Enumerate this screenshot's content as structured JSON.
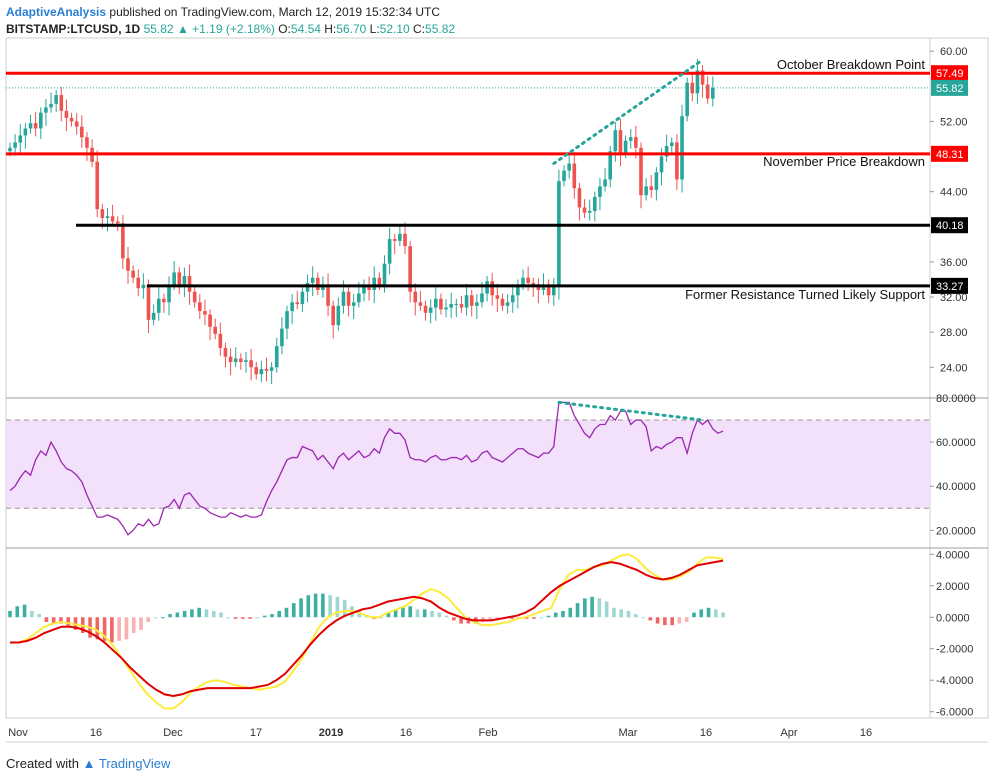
{
  "header": {
    "author": "AdaptiveAnalysis",
    "published": "published on TradingView.com, March 12, 2019 15:32:34 UTC",
    "symbol": "BITSTAMP:LTCUSD, 1D",
    "last": "55.82",
    "change": "▲ +1.19 (+2.18%)",
    "o_label": "O:",
    "o": "54.54",
    "h_label": "H:",
    "h": "56.70",
    "l_label": "L:",
    "l": "52.10",
    "c_label": "C:",
    "c": "55.82"
  },
  "footer": {
    "prefix": "Created with",
    "brand": "TradingView"
  },
  "colors": {
    "up": "#26a69a",
    "down": "#ef5350",
    "level_red": "#ff0000",
    "level_black": "#000000",
    "rsi": "#9c27b0",
    "rsi_band": "#f3e0fb",
    "macd": "#ffeb3b",
    "signal": "#e00000",
    "hist_up": "#26a69a",
    "hist_down": "#ef5350",
    "dotted": "#26a69a",
    "last_price": "#26a69a"
  },
  "chart_data": [
    {
      "type": "candlestick",
      "title": "BITSTAMP:LTCUSD, 1D",
      "x_ticks": [
        "Nov",
        "16",
        "Dec",
        "17",
        "2019",
        "16",
        "Feb",
        "Mar",
        "16",
        "Apr",
        "16"
      ],
      "y_ticks": [
        "60.00",
        "52.00",
        "44.00",
        "36.00",
        "32.00",
        "28.00",
        "24.00"
      ],
      "ylim": [
        20.5,
        61.5
      ],
      "x_range_days": [
        0,
        170
      ],
      "closes": [
        49.0,
        49.6,
        50.4,
        51.2,
        51.8,
        51.2,
        53.0,
        53.6,
        54.0,
        55.0,
        53.2,
        52.4,
        52.0,
        51.4,
        50.2,
        49.0,
        47.4,
        42.0,
        41.0,
        41.2,
        40.6,
        40.4,
        36.4,
        35.0,
        34.2,
        33.0,
        33.4,
        29.4,
        30.2,
        31.8,
        31.4,
        33.4,
        34.8,
        33.2,
        34.4,
        32.6,
        31.4,
        30.4,
        30.0,
        28.6,
        27.8,
        26.2,
        25.2,
        24.6,
        25.0,
        24.6,
        24.8,
        24.0,
        23.2,
        23.8,
        23.6,
        24.0,
        26.4,
        28.4,
        30.4,
        31.4,
        31.2,
        32.6,
        33.6,
        34.2,
        32.8,
        33.4,
        31.0,
        28.8,
        31.0,
        32.6,
        31.0,
        31.4,
        32.4,
        33.4,
        32.8,
        34.2,
        33.4,
        35.8,
        38.6,
        38.4,
        39.2,
        37.8,
        32.6,
        31.4,
        31.0,
        30.2,
        30.8,
        31.8,
        30.6,
        30.8,
        31.2,
        31.2,
        30.8,
        32.2,
        31.0,
        31.4,
        32.4,
        33.8,
        32.2,
        31.8,
        31.0,
        31.4,
        32.2,
        33.4,
        34.2,
        33.6,
        33.2,
        32.8,
        33.4,
        32.2,
        33.2,
        45.2,
        46.4,
        47.2,
        44.4,
        42.2,
        41.6,
        41.8,
        43.4,
        44.6,
        45.4,
        48.6,
        51.0,
        48.4,
        49.8,
        50.2,
        49.0,
        43.6,
        44.6,
        44.2,
        46.2,
        48.0,
        49.2,
        49.6,
        45.4,
        52.6,
        56.4,
        55.2,
        57.8,
        56.2,
        54.6,
        55.82
      ],
      "volatility_note": "",
      "levels": [
        {
          "value": 57.49,
          "label": "October Breakdown Point",
          "price_label": "57.49",
          "color": "red"
        },
        {
          "value": 48.31,
          "label": "November Price Breakdown",
          "price_label": "48.31",
          "color": "red"
        },
        {
          "value": 40.18,
          "label": "",
          "price_label": "40.18",
          "color": "black"
        },
        {
          "value": 33.27,
          "label": "Former Resistance Turned Likely Support",
          "price_label": "33.27",
          "color": "black"
        }
      ],
      "last_price": {
        "value": 55.82,
        "label": "55.82"
      },
      "trendline": {
        "from": [
          106,
          47.2
        ],
        "to": [
          135,
          59.0
        ],
        "style": "dotted"
      }
    },
    {
      "type": "line",
      "name": "RSI",
      "y_ticks": [
        "80.0000",
        "60.0000",
        "40.0000",
        "20.0000"
      ],
      "ylim": [
        12,
        80
      ],
      "band": [
        30,
        70
      ],
      "values": [
        38,
        40,
        44,
        47,
        45,
        52,
        56,
        54,
        60,
        56,
        51,
        48,
        47,
        45,
        42,
        36,
        31,
        26,
        26,
        27,
        26,
        25,
        22,
        18,
        20,
        23,
        22,
        25,
        22,
        23,
        30,
        31,
        34,
        30,
        36,
        37,
        34,
        31,
        30,
        28,
        27,
        26,
        26,
        28,
        27,
        26,
        27,
        26,
        26,
        27,
        33,
        38,
        42,
        47,
        52,
        53,
        53,
        58,
        57,
        56,
        52,
        54,
        51,
        48,
        53,
        55,
        52,
        54,
        56,
        53,
        54,
        57,
        55,
        62,
        66,
        64,
        64,
        61,
        53,
        52,
        52,
        51,
        53,
        54,
        52,
        52,
        53,
        53,
        52,
        54,
        51,
        52,
        55,
        56,
        53,
        52,
        51,
        53,
        55,
        57,
        57,
        55,
        54,
        53,
        55,
        55,
        58,
        78,
        78,
        78,
        72,
        68,
        64,
        62,
        66,
        68,
        68,
        72,
        70,
        74,
        74,
        68,
        70,
        70,
        67,
        56,
        58,
        57,
        59,
        60,
        62,
        62,
        55,
        64,
        70,
        68,
        70,
        66,
        64,
        65
      ],
      "trendline": {
        "from": [
          107,
          78
        ],
        "to": [
          135,
          70
        ],
        "style": "dotted"
      }
    },
    {
      "type": "line",
      "name": "MACD",
      "y_ticks": [
        "4.0000",
        "2.0000",
        "0.0000",
        "-2.0000",
        "-4.0000",
        "-6.0000"
      ],
      "ylim": [
        -6.4,
        4.4
      ],
      "macd": [
        -1.6,
        -1.6,
        -1.4,
        -1.0,
        -0.6,
        -0.4,
        -0.3,
        -0.4,
        -0.5,
        -0.6,
        -0.8,
        -1.2,
        -1.8,
        -2.6,
        -3.4,
        -4.2,
        -4.9,
        -5.4,
        -5.8,
        -5.8,
        -5.4,
        -4.8,
        -4.4,
        -4.1,
        -4.0,
        -4.1,
        -4.3,
        -4.4,
        -4.5,
        -4.6,
        -4.5,
        -4.4,
        -4.1,
        -3.4,
        -2.6,
        -1.6,
        -0.6,
        0.0,
        0.3,
        0.4,
        0.4,
        0.2,
        0.0,
        0.0,
        0.3,
        0.5,
        0.7,
        1.1,
        1.5,
        1.8,
        1.6,
        1.2,
        0.6,
        0.0,
        -0.3,
        -0.5,
        -0.5,
        -0.4,
        -0.3,
        -0.1,
        0.0,
        0.2,
        0.4,
        0.6,
        1.8,
        2.7,
        3.0,
        3.0,
        3.2,
        3.3,
        3.6,
        3.9,
        4.0,
        3.7,
        3.1,
        2.7,
        2.4,
        2.4,
        2.6,
        2.9,
        3.4,
        3.8,
        3.8,
        3.7
      ],
      "signal": [
        -1.6,
        -1.6,
        -1.5,
        -1.3,
        -1.0,
        -0.8,
        -0.6,
        -0.6,
        -0.7,
        -0.9,
        -1.2,
        -1.6,
        -2.1,
        -2.6,
        -3.2,
        -3.7,
        -4.2,
        -4.6,
        -4.9,
        -5.0,
        -4.9,
        -4.7,
        -4.6,
        -4.5,
        -4.5,
        -4.5,
        -4.5,
        -4.5,
        -4.5,
        -4.4,
        -4.3,
        -4.0,
        -3.6,
        -3.0,
        -2.4,
        -1.7,
        -1.1,
        -0.6,
        -0.2,
        0.1,
        0.3,
        0.5,
        0.6,
        0.8,
        1.0,
        1.1,
        1.2,
        1.3,
        1.2,
        1.0,
        0.6,
        0.3,
        0.1,
        -0.1,
        -0.2,
        -0.2,
        -0.2,
        -0.1,
        0.0,
        0.1,
        0.3,
        0.6,
        1.1,
        1.6,
        2.0,
        2.3,
        2.6,
        2.9,
        3.2,
        3.4,
        3.5,
        3.4,
        3.2,
        3.0,
        2.7,
        2.5,
        2.4,
        2.5,
        2.7,
        3.0,
        3.3,
        3.4,
        3.5,
        3.6
      ],
      "histogram": [
        0.4,
        0.7,
        0.8,
        0.4,
        0.2,
        -0.3,
        -0.4,
        -0.4,
        -0.6,
        -0.8,
        -1.0,
        -1.3,
        -1.4,
        -1.5,
        -1.6,
        -1.5,
        -1.4,
        -1.0,
        -0.8,
        -0.3,
        0.0,
        0.0,
        0.2,
        0.3,
        0.4,
        0.5,
        0.6,
        0.5,
        0.4,
        0.3,
        0.0,
        -0.1,
        -0.1,
        -0.1,
        0.0,
        0.1,
        0.2,
        0.4,
        0.6,
        0.9,
        1.2,
        1.4,
        1.5,
        1.5,
        1.4,
        1.3,
        1.1,
        0.7,
        0.4,
        0.1,
        -0.1,
        0.0,
        0.3,
        0.5,
        0.7,
        0.7,
        0.5,
        0.5,
        0.4,
        0.3,
        0.1,
        -0.2,
        -0.4,
        -0.4,
        -0.4,
        -0.3,
        -0.2,
        -0.1,
        0.0,
        -0.1,
        -0.1,
        -0.1,
        -0.1,
        0.0,
        0.1,
        0.3,
        0.4,
        0.6,
        0.9,
        1.2,
        1.3,
        1.2,
        1.0,
        0.6,
        0.5,
        0.4,
        0.2,
        0.0,
        -0.2,
        -0.4,
        -0.5,
        -0.5,
        -0.4,
        -0.3,
        0.3,
        0.5,
        0.6,
        0.5,
        0.3
      ]
    }
  ]
}
